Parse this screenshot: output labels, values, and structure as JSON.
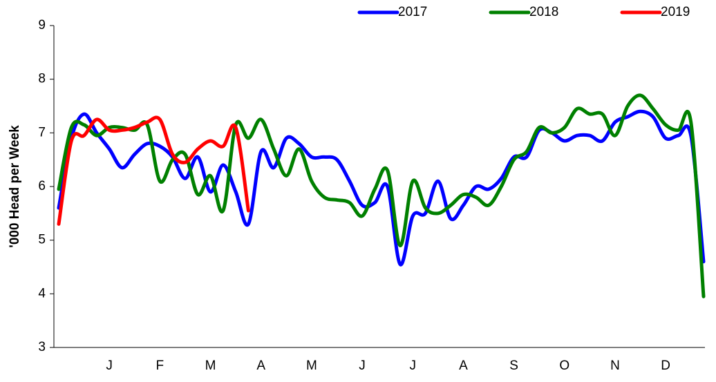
{
  "chart_data": {
    "type": "line",
    "ylabel": "'000 Head per Week",
    "categories": [
      null,
      null,
      null,
      null,
      "J",
      null,
      null,
      null,
      "F",
      null,
      null,
      null,
      "M",
      null,
      null,
      null,
      "A",
      null,
      null,
      null,
      "M",
      null,
      null,
      null,
      "J",
      null,
      null,
      null,
      "J",
      null,
      null,
      null,
      "A",
      null,
      null,
      null,
      "S",
      null,
      null,
      null,
      "O",
      null,
      null,
      null,
      "N",
      null,
      null,
      null,
      "D",
      null,
      null,
      null
    ],
    "series": [
      {
        "name": "2017",
        "color": "#0000ff",
        "values": [
          5.6,
          6.9,
          7.35,
          7.0,
          6.7,
          6.35,
          6.6,
          6.8,
          6.75,
          6.55,
          6.15,
          6.55,
          5.9,
          6.4,
          5.9,
          5.3,
          6.65,
          6.35,
          6.9,
          6.8,
          6.55,
          6.55,
          6.5,
          6.1,
          5.65,
          5.7,
          6.0,
          4.55,
          5.45,
          5.5,
          6.1,
          5.4,
          5.65,
          6.0,
          5.95,
          6.15,
          6.55,
          6.55,
          7.05,
          7.0,
          6.85,
          6.95,
          6.95,
          6.85,
          7.2,
          7.3,
          7.4,
          7.3,
          6.9,
          6.95,
          6.95,
          4.6
        ]
      },
      {
        "name": "2018",
        "color": "#008000",
        "values": [
          5.95,
          7.1,
          7.15,
          6.95,
          7.1,
          7.1,
          7.05,
          7.15,
          6.1,
          6.5,
          6.6,
          5.85,
          6.2,
          5.55,
          7.15,
          6.9,
          7.25,
          6.7,
          6.2,
          6.7,
          6.1,
          5.8,
          5.75,
          5.7,
          5.45,
          5.95,
          6.3,
          4.9,
          6.1,
          5.6,
          5.5,
          5.65,
          5.85,
          5.8,
          5.65,
          6.0,
          6.5,
          6.65,
          7.1,
          7.0,
          7.1,
          7.45,
          7.35,
          7.35,
          6.95,
          7.5,
          7.7,
          7.45,
          7.15,
          7.05,
          7.2,
          3.95
        ]
      },
      {
        "name": "2019",
        "color": "#ff0000",
        "values": [
          5.3,
          6.85,
          6.95,
          7.25,
          7.05,
          7.05,
          7.1,
          7.2,
          7.25,
          6.6,
          6.45,
          6.7,
          6.85,
          6.75,
          7.1,
          5.55,
          null,
          null,
          null,
          null,
          null,
          null,
          null,
          null,
          null,
          null,
          null,
          null,
          null,
          null,
          null,
          null,
          null,
          null,
          null,
          null,
          null,
          null,
          null,
          null,
          null,
          null,
          null,
          null,
          null,
          null,
          null,
          null,
          null,
          null,
          null,
          null
        ]
      }
    ],
    "ylim": [
      3,
      9
    ],
    "yticks": [
      3,
      4,
      5,
      6,
      7,
      8,
      9
    ]
  }
}
